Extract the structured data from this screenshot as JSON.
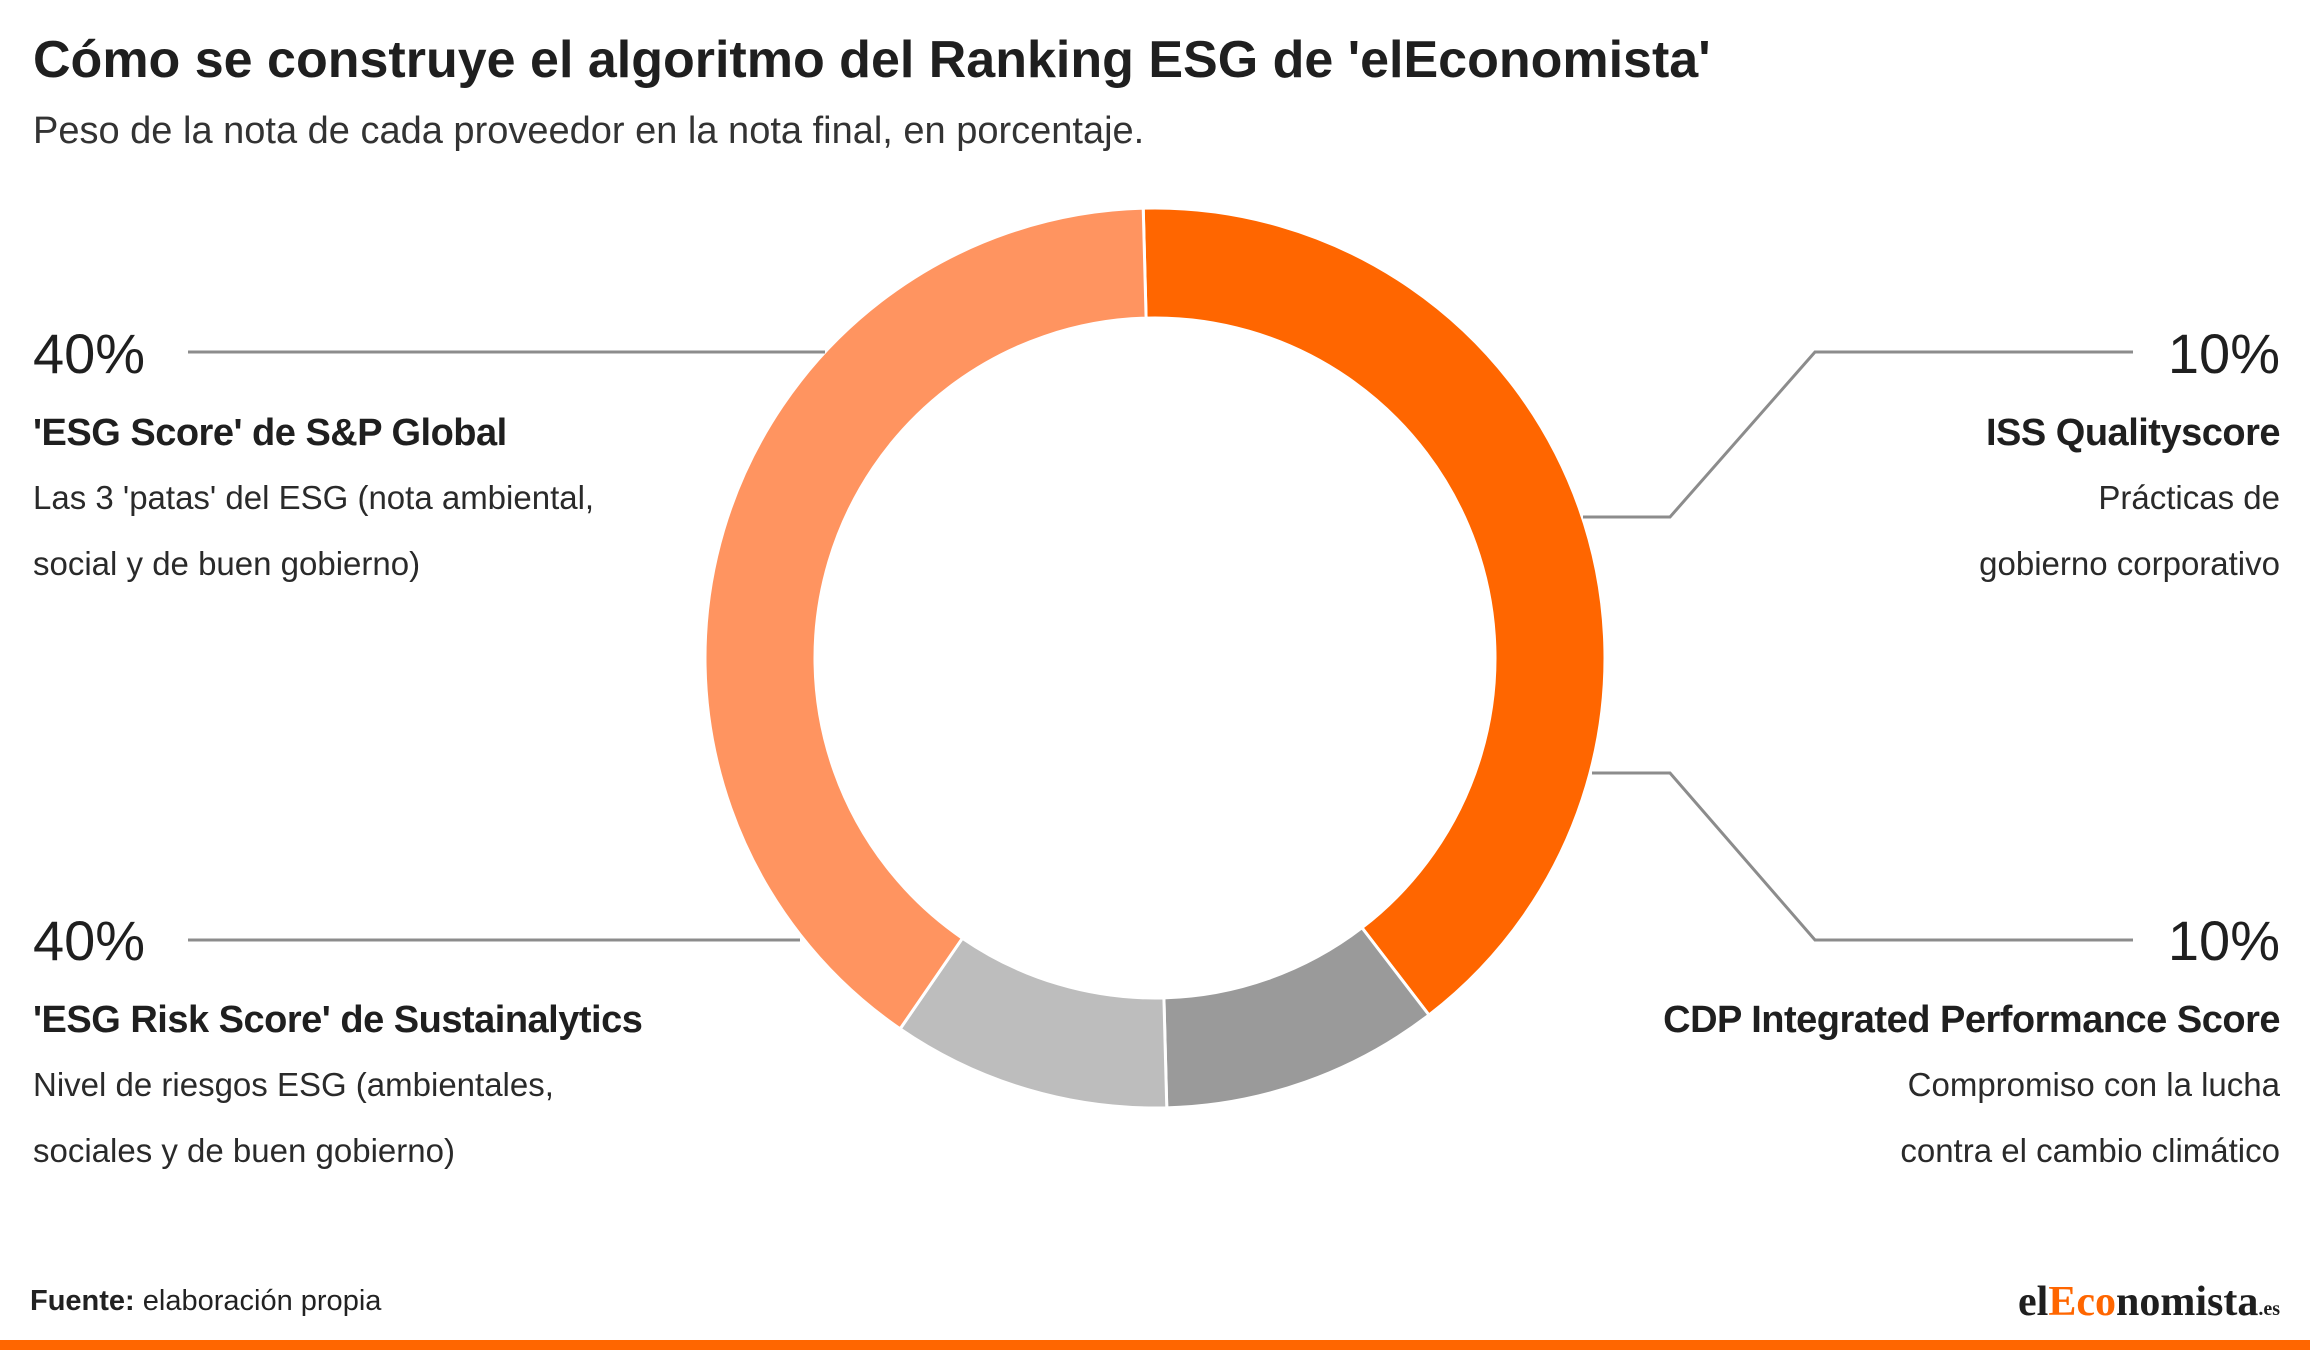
{
  "title": "Cómo se construye el algoritmo del Ranking ESG de 'elEconomista'",
  "subtitle": "Peso de la nota de cada proveedor en la nota final, en porcentaje.",
  "chart_data": {
    "type": "pie",
    "variant": "donut",
    "slices": [
      {
        "label": "'ESG Score' de S&P Global",
        "value": 40,
        "value_label": "40%",
        "description": [
          "Las 3 'patas' del ESG (nota ambiental,",
          "social y de buen gobierno)"
        ],
        "color": "#ff6600"
      },
      {
        "label": "ISS Qualityscore",
        "value": 10,
        "value_label": "10%",
        "description": [
          "Prácticas de",
          "gobierno corporativo"
        ],
        "color": "#9a9a9a"
      },
      {
        "label": "CDP Integrated Performance Score",
        "value": 10,
        "value_label": "10%",
        "description": [
          "Compromiso con la lucha",
          "contra el cambio climático"
        ],
        "color": "#bdbdbd"
      },
      {
        "label": "'ESG Risk Score' de Sustainalytics",
        "value": 40,
        "value_label": "40%",
        "description": [
          "Nivel de riesgos ESG (ambientales,",
          "sociales y de buen gobierno)"
        ],
        "color": "#ff9460"
      }
    ]
  },
  "footer": {
    "source_label": "Fuente:",
    "source_text": " elaboración propia"
  },
  "logo": {
    "part1": "el",
    "part2": "Eco",
    "part3": "nomista",
    "tld": ".es"
  },
  "colors": {
    "accent": "#ff6600",
    "leader_line": "#8c8c8c"
  }
}
